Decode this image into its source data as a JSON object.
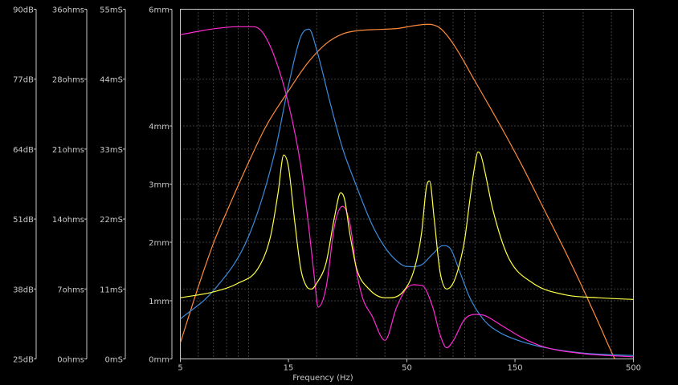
{
  "chart_data": {
    "type": "line",
    "xlabel": "Frequency (Hz)",
    "x_scale": "log",
    "xlim": [
      5,
      500
    ],
    "x_ticks": [
      "5",
      "15",
      "50",
      "150",
      "500"
    ],
    "grid": true,
    "axes": [
      {
        "name": "dB",
        "range": [
          25,
          90
        ],
        "ticks": [
          "25dB",
          "38dB",
          "51dB",
          "64dB",
          "77dB",
          "90dB"
        ]
      },
      {
        "name": "ohms",
        "range": [
          0,
          42
        ],
        "ticks": [
          "0ohms",
          "7ohms",
          "14ohms",
          "21ohms",
          "28ohms",
          "36ohms"
        ]
      },
      {
        "name": "mS",
        "range": [
          0,
          66
        ],
        "ticks": [
          "0mS",
          "11mS",
          "22mS",
          "33mS",
          "44mS",
          "55mS"
        ]
      },
      {
        "name": "mm",
        "range": [
          0,
          6
        ],
        "ticks": [
          "0mm",
          "1mm",
          "2mm",
          "3mm",
          "4mm",
          "6mm"
        ]
      }
    ],
    "series": [
      {
        "axis": "dB",
        "color": "#ff8c3c",
        "x": [
          5,
          6,
          7,
          8,
          10,
          12,
          15,
          18,
          22,
          26,
          30,
          35,
          45,
          55,
          62,
          70,
          80,
          100,
          130,
          160,
          200,
          250,
          300,
          350,
          400,
          500
        ],
        "y": [
          28,
          38.4,
          46.5,
          52.3,
          61.5,
          68.4,
          74.8,
          79.7,
          83.6,
          85.4,
          86,
          86.2,
          86.4,
          87,
          87.2,
          86.5,
          83.6,
          76.6,
          68.2,
          61.2,
          53.1,
          45,
          38,
          31.8,
          26.3,
          18
        ]
      },
      {
        "axis": "ohms",
        "color": "#3c8cdc",
        "x": [
          5,
          7,
          10,
          13,
          15,
          17,
          18.5,
          20,
          23,
          26,
          30,
          35,
          40,
          45,
          50,
          58,
          65,
          72,
          78,
          85,
          95,
          110,
          130,
          160,
          200,
          300,
          500
        ],
        "y": [
          4.8,
          8.2,
          14.7,
          24.6,
          32.8,
          38.7,
          39.6,
          37.1,
          30.6,
          25.3,
          20.7,
          16.2,
          13.4,
          11.8,
          11.1,
          11.3,
          12.6,
          13.6,
          13.2,
          10.7,
          7.3,
          4.6,
          3.1,
          2.1,
          1.4,
          0.7,
          0.4
        ]
      },
      {
        "axis": "mS",
        "color": "#ff2ad4",
        "x": [
          5,
          7,
          9,
          10.5,
          11.5,
          13,
          15,
          17,
          18.5,
          19.5,
          20.3,
          22,
          24,
          26,
          28,
          30,
          32,
          35,
          40,
          45,
          50,
          58,
          65,
          70,
          75,
          80,
          90,
          100,
          110,
          130,
          160,
          200,
          300,
          500
        ],
        "y": [
          61.2,
          62.3,
          62.7,
          62.7,
          61.7,
          57.1,
          48.2,
          36.5,
          24.4,
          15.6,
          9.8,
          13.5,
          25.3,
          28.8,
          25.6,
          16.5,
          11.3,
          8.2,
          3.5,
          9.7,
          13.4,
          13.9,
          9.8,
          4.6,
          2.1,
          3.4,
          7.5,
          8.4,
          8.2,
          6.4,
          4.1,
          2.3,
          1,
          0.4
        ]
      },
      {
        "axis": "mm",
        "color": "#ffff46",
        "x": [
          5,
          7,
          9,
          11,
          12.5,
          13.5,
          14.3,
          15,
          16,
          17,
          18,
          19,
          20,
          22,
          24,
          25.5,
          26.5,
          28,
          30,
          34,
          40,
          48,
          54,
          58,
          61,
          63,
          66,
          70,
          75,
          80,
          85,
          90,
          95,
          100,
          103,
          106,
          110,
          120,
          140,
          180,
          250,
          350,
          500
        ],
        "y": [
          1.05,
          1.15,
          1.3,
          1.55,
          2.1,
          2.85,
          3.5,
          3.3,
          2.35,
          1.55,
          1.25,
          1.2,
          1.3,
          1.65,
          2.45,
          2.85,
          2.75,
          2.15,
          1.55,
          1.2,
          1.05,
          1.15,
          1.55,
          2.15,
          2.95,
          3.05,
          2.4,
          1.5,
          1.2,
          1.3,
          1.6,
          2.05,
          2.75,
          3.35,
          3.55,
          3.5,
          3.25,
          2.55,
          1.75,
          1.3,
          1.1,
          1.05,
          1.02
        ]
      }
    ]
  }
}
